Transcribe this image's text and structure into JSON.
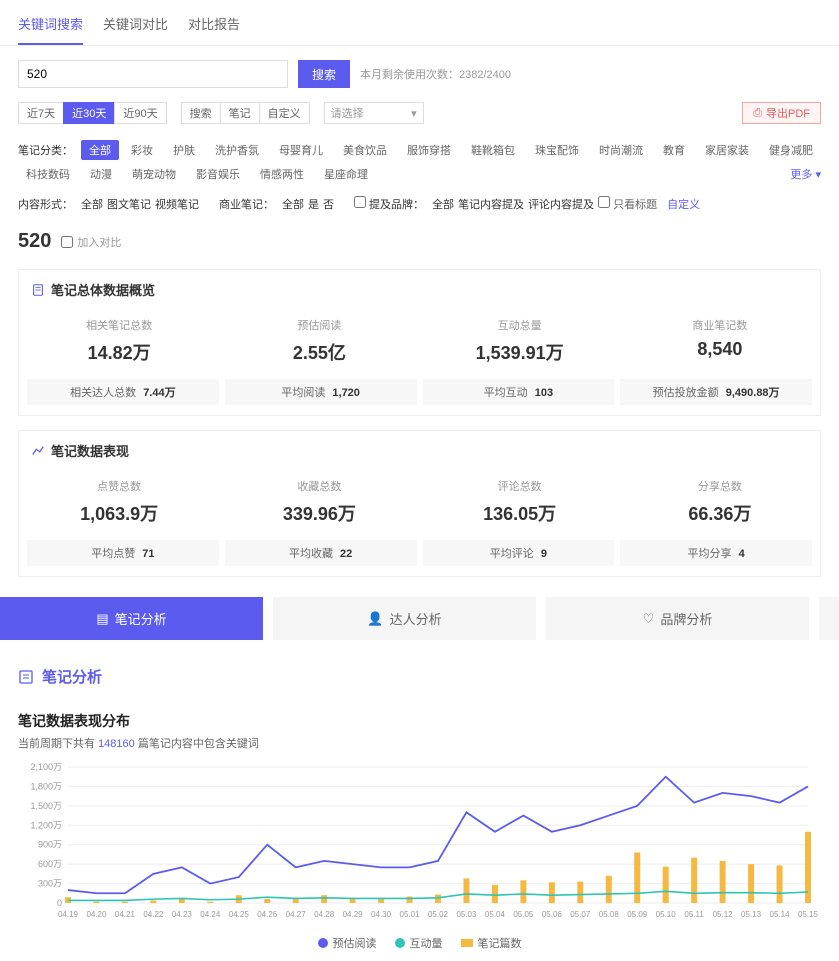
{
  "colors": {
    "primary": "#5b5bef",
    "export_border": "#f5a3a3",
    "export_text": "#e85a5a",
    "export_bg": "#fff5f5",
    "green": "#2ec4b6",
    "orange": "#f5b841",
    "grid": "#eeeeee",
    "axis_text": "#999999"
  },
  "top_tabs": [
    {
      "label": "关键词搜索",
      "active": true
    },
    {
      "label": "关键词对比",
      "active": false
    },
    {
      "label": "对比报告",
      "active": false
    }
  ],
  "search": {
    "value": "520",
    "button": "搜索",
    "meta_prefix": "本月剩余使用次数：",
    "meta_value": "2382/2400"
  },
  "range_chips": [
    {
      "label": "近7天",
      "active": false
    },
    {
      "label": "近30天",
      "active": true
    },
    {
      "label": "近90天",
      "active": false
    }
  ],
  "sort_chips": [
    {
      "label": "搜索",
      "active": false
    },
    {
      "label": "笔记",
      "active": false
    },
    {
      "label": "自定义",
      "active": false
    }
  ],
  "select_placeholder": "请选择",
  "export_label": "导出PDF",
  "category": {
    "label": "笔记分类：",
    "items": [
      "全部",
      "彩妆",
      "护肤",
      "洗护香氛",
      "母婴育儿",
      "美食饮品",
      "服饰穿搭",
      "鞋靴箱包",
      "珠宝配饰",
      "时尚潮流",
      "教育",
      "家居家装",
      "健身减肥",
      "科技数码",
      "动漫",
      "萌宠动物",
      "影音娱乐",
      "情感两性",
      "星座命理"
    ],
    "active_index": 0,
    "more": "更多"
  },
  "content_form": {
    "label": "内容形式：",
    "items": [
      "全部",
      "图文笔记",
      "视频笔记"
    ],
    "active_index": 0
  },
  "biz_note": {
    "label": "商业笔记：",
    "items": [
      "全部",
      "是",
      "否"
    ],
    "active_index": 0
  },
  "mention": {
    "label": "提及品牌：",
    "items": [
      "全部",
      "笔记内容提及",
      "评论内容提及"
    ],
    "active_index": 0,
    "only_title_cb": "只看标题",
    "custom": "自定义"
  },
  "keyword": {
    "value": "520",
    "add_compare": "加入对比"
  },
  "overview": {
    "title": "笔记总体数据概览",
    "stats": [
      {
        "label": "相关笔记总数",
        "value": "14.82万",
        "sub_label": "相关达人总数",
        "sub_value": "7.44万"
      },
      {
        "label": "预估阅读",
        "value": "2.55亿",
        "sub_label": "平均阅读",
        "sub_value": "1,720"
      },
      {
        "label": "互动总量",
        "value": "1,539.91万",
        "sub_label": "平均互动",
        "sub_value": "103"
      },
      {
        "label": "商业笔记数",
        "value": "8,540",
        "sub_label": "预估投放金额",
        "sub_value": "9,490.88万"
      }
    ]
  },
  "performance": {
    "title": "笔记数据表现",
    "stats": [
      {
        "label": "点赞总数",
        "value": "1,063.9万",
        "sub_label": "平均点赞",
        "sub_value": "71"
      },
      {
        "label": "收藏总数",
        "value": "339.96万",
        "sub_label": "平均收藏",
        "sub_value": "22"
      },
      {
        "label": "评论总数",
        "value": "136.05万",
        "sub_label": "平均评论",
        "sub_value": "9"
      },
      {
        "label": "分享总数",
        "value": "66.36万",
        "sub_label": "平均分享",
        "sub_value": "4"
      }
    ]
  },
  "big_tabs": [
    {
      "label": "笔记分析",
      "active": true,
      "icon": "note"
    },
    {
      "label": "达人分析",
      "active": false,
      "icon": "user"
    },
    {
      "label": "品牌分析",
      "active": false,
      "icon": "heart"
    }
  ],
  "section_title": "笔记分析",
  "chart": {
    "title": "笔记数据表现分布",
    "sub_prefix": "当前周期下共有 ",
    "sub_count": "148160",
    "sub_suffix": " 篇笔记内容中包含关键词",
    "y_ticks": [
      "0",
      "300万",
      "600万",
      "900万",
      "1,200万",
      "1,500万",
      "1,800万",
      "2,100万"
    ],
    "y_max": 2100,
    "x_labels": [
      "04.19",
      "04.20",
      "04.21",
      "04.22",
      "04.23",
      "04.24",
      "04.25",
      "04.26",
      "04.27",
      "04.28",
      "04.29",
      "04.30",
      "05.01",
      "05.02",
      "05.03",
      "05.04",
      "05.05",
      "05.06",
      "05.07",
      "05.08",
      "05.09",
      "05.10",
      "05.11",
      "05.12",
      "05.13",
      "05.14",
      "05.15"
    ],
    "series_read": [
      200,
      150,
      150,
      450,
      550,
      300,
      400,
      900,
      550,
      650,
      600,
      550,
      550,
      650,
      1400,
      1100,
      1350,
      1100,
      1200,
      1350,
      1500,
      1950,
      1550,
      1700,
      1650,
      1550,
      1800
    ],
    "series_interact": [
      40,
      40,
      40,
      60,
      70,
      50,
      60,
      90,
      70,
      80,
      70,
      70,
      70,
      80,
      140,
      120,
      140,
      120,
      130,
      140,
      150,
      180,
      150,
      160,
      160,
      150,
      170
    ],
    "series_count": [
      90,
      20,
      20,
      40,
      80,
      20,
      120,
      60,
      60,
      120,
      60,
      60,
      100,
      130,
      380,
      280,
      350,
      320,
      330,
      420,
      780,
      560,
      700,
      650,
      600,
      580,
      1100
    ],
    "legend": [
      {
        "label": "预估阅读",
        "color": "#5b5bef",
        "shape": "dot"
      },
      {
        "label": "互动量",
        "color": "#2ec4b6",
        "shape": "dot"
      },
      {
        "label": "笔记篇数",
        "color": "#f5b841",
        "shape": "bar"
      }
    ]
  }
}
